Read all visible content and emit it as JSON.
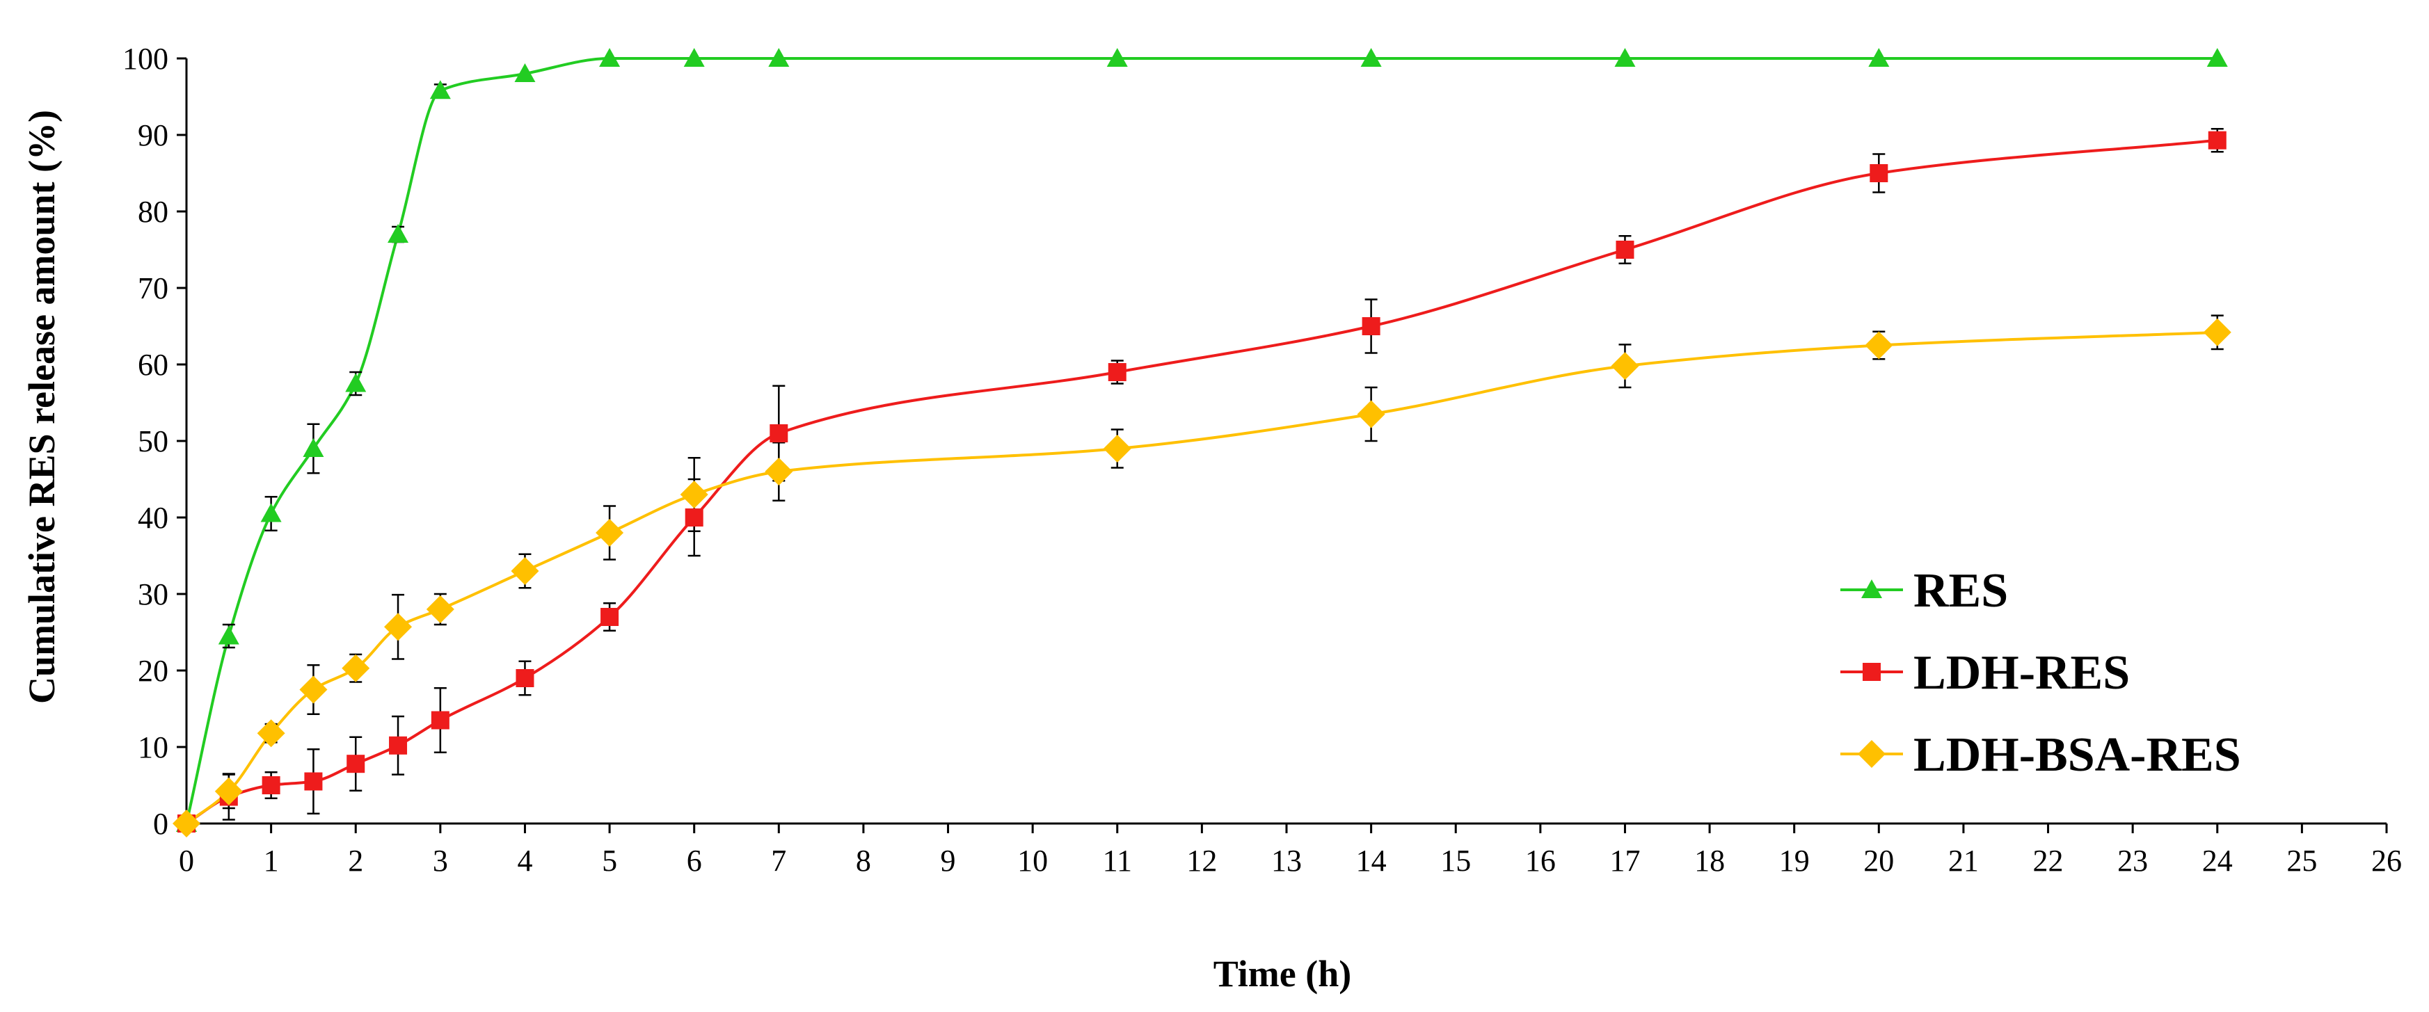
{
  "chart_data": {
    "type": "line",
    "title": "",
    "xlabel": "Time (h)",
    "ylabel": "Cumulative RES release amount (%)",
    "xlim": [
      0,
      26
    ],
    "ylim": [
      0,
      100
    ],
    "x_ticks": [
      "0",
      "1",
      "2",
      "3",
      "4",
      "5",
      "6",
      "7",
      "8",
      "9",
      "10",
      "11",
      "12",
      "13",
      "14",
      "15",
      "16",
      "17",
      "18",
      "19",
      "20",
      "21",
      "22",
      "23",
      "24",
      "25",
      "26"
    ],
    "y_ticks": [
      "0",
      "10",
      "20",
      "30",
      "40",
      "50",
      "60",
      "70",
      "80",
      "90",
      "100"
    ],
    "grid": false,
    "legend_position": "right-center",
    "series": [
      {
        "name": "RES",
        "color": "#22cc22",
        "marker": "triangle",
        "x": [
          0,
          0.5,
          1,
          1.5,
          2,
          2.5,
          3,
          4,
          5,
          6,
          7,
          11,
          14,
          17,
          20,
          24
        ],
        "values": [
          0,
          24.5,
          40.5,
          49,
          57.5,
          77,
          95.8,
          98,
          100,
          100,
          100,
          100,
          100,
          100,
          100,
          100
        ],
        "errors": [
          0,
          1.5,
          2.2,
          3.2,
          1.5,
          1,
          0.8,
          0,
          0,
          0,
          0,
          0,
          0,
          0,
          0,
          0
        ]
      },
      {
        "name": "LDH-RES",
        "color": "#ee1c1c",
        "marker": "square",
        "x": [
          0,
          0.5,
          1,
          1.5,
          2,
          2.5,
          3,
          4,
          5,
          6,
          7,
          11,
          14,
          17,
          20,
          24
        ],
        "values": [
          0,
          3.5,
          5,
          5.5,
          7.8,
          10.2,
          13.5,
          19,
          27,
          40,
          51,
          59,
          65,
          75,
          85,
          89.3
        ],
        "errors": [
          0,
          3,
          1.7,
          4.2,
          3.5,
          3.8,
          4.2,
          2.2,
          1.8,
          5,
          6.2,
          1.5,
          3.5,
          1.8,
          2.5,
          1.5
        ]
      },
      {
        "name": "LDH-BSA-RES",
        "color": "#ffc000",
        "marker": "diamond",
        "x": [
          0,
          0.5,
          1,
          1.5,
          2,
          2.5,
          3,
          4,
          5,
          6,
          7,
          11,
          14,
          17,
          20,
          24
        ],
        "values": [
          0,
          4.2,
          11.8,
          17.5,
          20.3,
          25.7,
          28,
          33,
          38,
          43,
          46,
          49,
          53.5,
          59.8,
          62.5,
          64.2
        ],
        "errors": [
          0,
          2.2,
          1.2,
          3.2,
          1.8,
          4.2,
          2,
          2.2,
          3.5,
          4.8,
          3.8,
          2.5,
          3.5,
          2.8,
          1.8,
          2.2
        ]
      }
    ]
  }
}
